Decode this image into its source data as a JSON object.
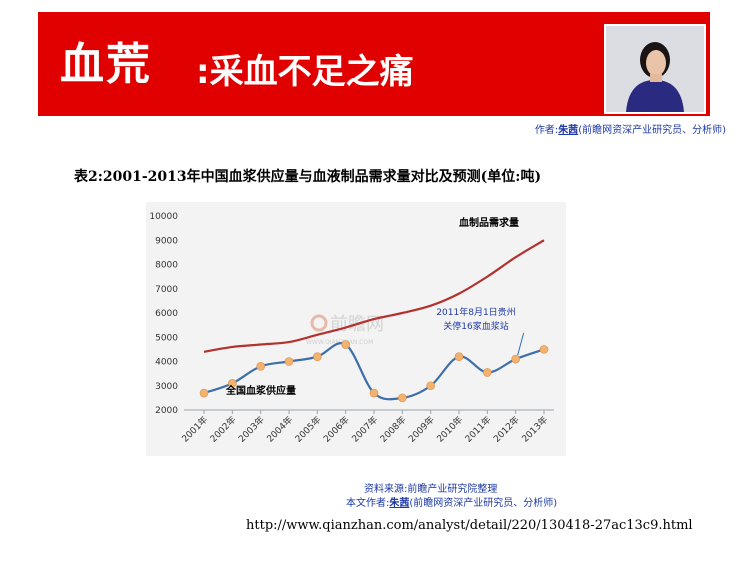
{
  "header": {
    "title_main": "血荒",
    "title_sub": ":采血不足之痛",
    "author_prefix": "作者:",
    "author_name": "朱茜",
    "author_suffix": "(前瞻网资深产业研究员、分析师)"
  },
  "table_title": "表2:2001-2013年中国血浆供应量与血液制品需求量对比及预测(单位:吨)",
  "watermark": {
    "text": "前瞻网",
    "sub": "WWW.QIANZHAN.COM"
  },
  "chart_data": {
    "type": "line",
    "categories": [
      "2001年",
      "2002年",
      "2003年",
      "2004年",
      "2005年",
      "2006年",
      "2007年",
      "2008年",
      "2009年",
      "2010年",
      "2011年",
      "2012年",
      "2013年"
    ],
    "y_ticks": [
      "10000",
      "9000",
      "8000",
      "7000",
      "6000",
      "5000",
      "4000",
      "3000",
      "2000"
    ],
    "ylim": [
      2000,
      10000
    ],
    "grid": false,
    "series": [
      {
        "name": "血制品需求量",
        "color": "#b3312e",
        "values": [
          4400,
          4600,
          4700,
          4800,
          5100,
          5400,
          5750,
          6000,
          6300,
          6800,
          7500,
          8300,
          9000
        ]
      },
      {
        "name": "全国血浆供应量",
        "color": "#3e6fa8",
        "marker_color": "#f2b36f",
        "values": [
          2700,
          3100,
          3800,
          4000,
          4200,
          4700,
          2700,
          2500,
          3000,
          4200,
          3550,
          4100,
          4500
        ]
      }
    ],
    "annotation": {
      "line1": "2011年8月1日贵州",
      "line2": "关停16家血浆站",
      "x": "2012年",
      "y": 4100
    }
  },
  "footer": {
    "source": "资料来源:前瞻产业研究院整理",
    "author_prefix": "本文作者:",
    "author_name": "朱茜",
    "author_suffix": "(前瞻网资深产业研究员、分析师)",
    "url": "http://www.qianzhan.com/analyst/detail/220/130418-27ac13c9.html"
  },
  "colors": {
    "banner": "#e10000",
    "link_blue": "#1f3aa6",
    "chart_bg": "#f3f3f3"
  }
}
